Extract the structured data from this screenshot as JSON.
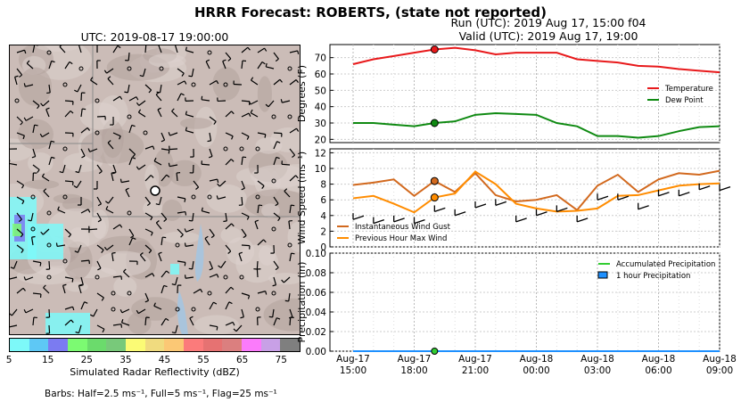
{
  "header": {
    "title": "HRRR Forecast: ROBERTS, (state not reported)",
    "run_label": "Run (UTC): 2019 Aug 17, 15:00 f04",
    "valid_label": "Valid (UTC): 2019 Aug 17, 19:00"
  },
  "map": {
    "title": "UTC: 2019-08-17 19:00:00",
    "colorbar": {
      "ticks": [
        "5",
        "15",
        "25",
        "35",
        "45",
        "55",
        "65",
        "75"
      ],
      "label": "Simulated Radar Reflectivity (dBZ)",
      "colors": [
        "#7df9f9",
        "#5ec8f5",
        "#7b7bf1",
        "#7cfa72",
        "#6bdb6c",
        "#78c97a",
        "#fbfb75",
        "#f0db7f",
        "#fbc875",
        "#fb7b7b",
        "#e67272",
        "#db7f7f",
        "#fb7bfb",
        "#c8a0e6",
        "#7f7f7f"
      ]
    },
    "barb_note": "Barbs: Half=2.5 ms⁻¹, Full=5 ms⁻¹, Flag=25 ms⁻¹"
  },
  "chart_data": [
    {
      "type": "line",
      "x": [
        "Aug-17 15:00",
        "Aug-17 16:00",
        "Aug-17 17:00",
        "Aug-17 18:00",
        "Aug-17 19:00",
        "Aug-17 20:00",
        "Aug-17 21:00",
        "Aug-17 22:00",
        "Aug-17 23:00",
        "Aug-18 00:00",
        "Aug-18 01:00",
        "Aug-18 02:00",
        "Aug-18 03:00",
        "Aug-18 04:00",
        "Aug-18 05:00",
        "Aug-18 06:00",
        "Aug-18 07:00",
        "Aug-18 08:00",
        "Aug-18 09:00"
      ],
      "ylabel": "Degrees (F)",
      "ylim": [
        18,
        78
      ],
      "yticks": [
        20,
        30,
        40,
        50,
        60,
        70
      ],
      "series": [
        {
          "name": "Temperature",
          "color": "#e8191b",
          "values": [
            66,
            69,
            71,
            73,
            75,
            76,
            74.5,
            72,
            73,
            73,
            73,
            69,
            68,
            67,
            65,
            64.5,
            63,
            62,
            61
          ]
        },
        {
          "name": "Dew Point",
          "color": "#0f8a12",
          "values": [
            30,
            30,
            29,
            28,
            30,
            31,
            35,
            36,
            35.5,
            35,
            30,
            28,
            22,
            22,
            21,
            22,
            25,
            27.5,
            28
          ]
        }
      ],
      "marker_x": "Aug-17 19:00",
      "legend": "center-right"
    },
    {
      "type": "line",
      "x": [
        "Aug-17 15:00",
        "Aug-17 16:00",
        "Aug-17 17:00",
        "Aug-17 18:00",
        "Aug-17 19:00",
        "Aug-17 20:00",
        "Aug-17 21:00",
        "Aug-17 22:00",
        "Aug-17 23:00",
        "Aug-18 00:00",
        "Aug-18 01:00",
        "Aug-18 02:00",
        "Aug-18 03:00",
        "Aug-18 04:00",
        "Aug-18 05:00",
        "Aug-18 06:00",
        "Aug-18 07:00",
        "Aug-18 08:00",
        "Aug-18 09:00"
      ],
      "ylabel": "Wind Speed (ms⁻¹)",
      "ylim": [
        0,
        12.5
      ],
      "yticks": [
        0,
        2,
        4,
        6,
        8,
        10,
        12
      ],
      "series": [
        {
          "name": "Instantaneous Wind Gust",
          "color": "#d2691e",
          "values": [
            7.9,
            8.2,
            8.6,
            6.5,
            8.4,
            7.0,
            9.4,
            6.6,
            5.8,
            6.0,
            6.6,
            4.7,
            7.8,
            9.2,
            7.0,
            8.6,
            9.4,
            9.2,
            9.7
          ]
        },
        {
          "name": "Previous Hour Max Wind",
          "color": "#ff8c00",
          "values": [
            6.2,
            6.5,
            5.5,
            4.4,
            6.3,
            6.8,
            9.6,
            8.0,
            5.5,
            4.9,
            4.5,
            4.6,
            4.9,
            6.5,
            6.6,
            7.2,
            7.8,
            8.0,
            8.1
          ]
        }
      ],
      "marker_x": "Aug-17 19:00",
      "legend": "lower-left"
    },
    {
      "type": "bar",
      "x": [
        "Aug-17 15:00",
        "Aug-17 16:00",
        "Aug-17 17:00",
        "Aug-17 18:00",
        "Aug-17 19:00",
        "Aug-17 20:00",
        "Aug-17 21:00",
        "Aug-17 22:00",
        "Aug-17 23:00",
        "Aug-18 00:00",
        "Aug-18 01:00",
        "Aug-18 02:00",
        "Aug-18 03:00",
        "Aug-18 04:00",
        "Aug-18 05:00",
        "Aug-18 06:00",
        "Aug-18 07:00",
        "Aug-18 08:00",
        "Aug-18 09:00"
      ],
      "ylabel": "Precipitation (in)",
      "ylim": [
        0,
        0.1
      ],
      "yticks": [
        "0.00",
        "0.02",
        "0.04",
        "0.06",
        "0.08",
        "0.10"
      ],
      "series": [
        {
          "name": "Accumulated Precipitation",
          "color": "#32cd32",
          "values": [
            0,
            0,
            0,
            0,
            0,
            0,
            0,
            0,
            0,
            0,
            0,
            0,
            0,
            0,
            0,
            0,
            0,
            0,
            0
          ]
        },
        {
          "name": "1 hour Precipitation",
          "color": "#1e90ff",
          "values": [
            0,
            0,
            0,
            0,
            0,
            0,
            0,
            0,
            0,
            0,
            0,
            0,
            0,
            0,
            0,
            0,
            0,
            0,
            0
          ]
        }
      ],
      "xticks": [
        {
          "line1": "Aug-17",
          "line2": "15:00"
        },
        {
          "line1": "Aug-17",
          "line2": "18:00"
        },
        {
          "line1": "Aug-17",
          "line2": "21:00"
        },
        {
          "line1": "Aug-18",
          "line2": "00:00"
        },
        {
          "line1": "Aug-18",
          "line2": "03:00"
        },
        {
          "line1": "Aug-18",
          "line2": "06:00"
        },
        {
          "line1": "Aug-18",
          "line2": "09:00"
        }
      ],
      "legend": "top-right"
    }
  ]
}
